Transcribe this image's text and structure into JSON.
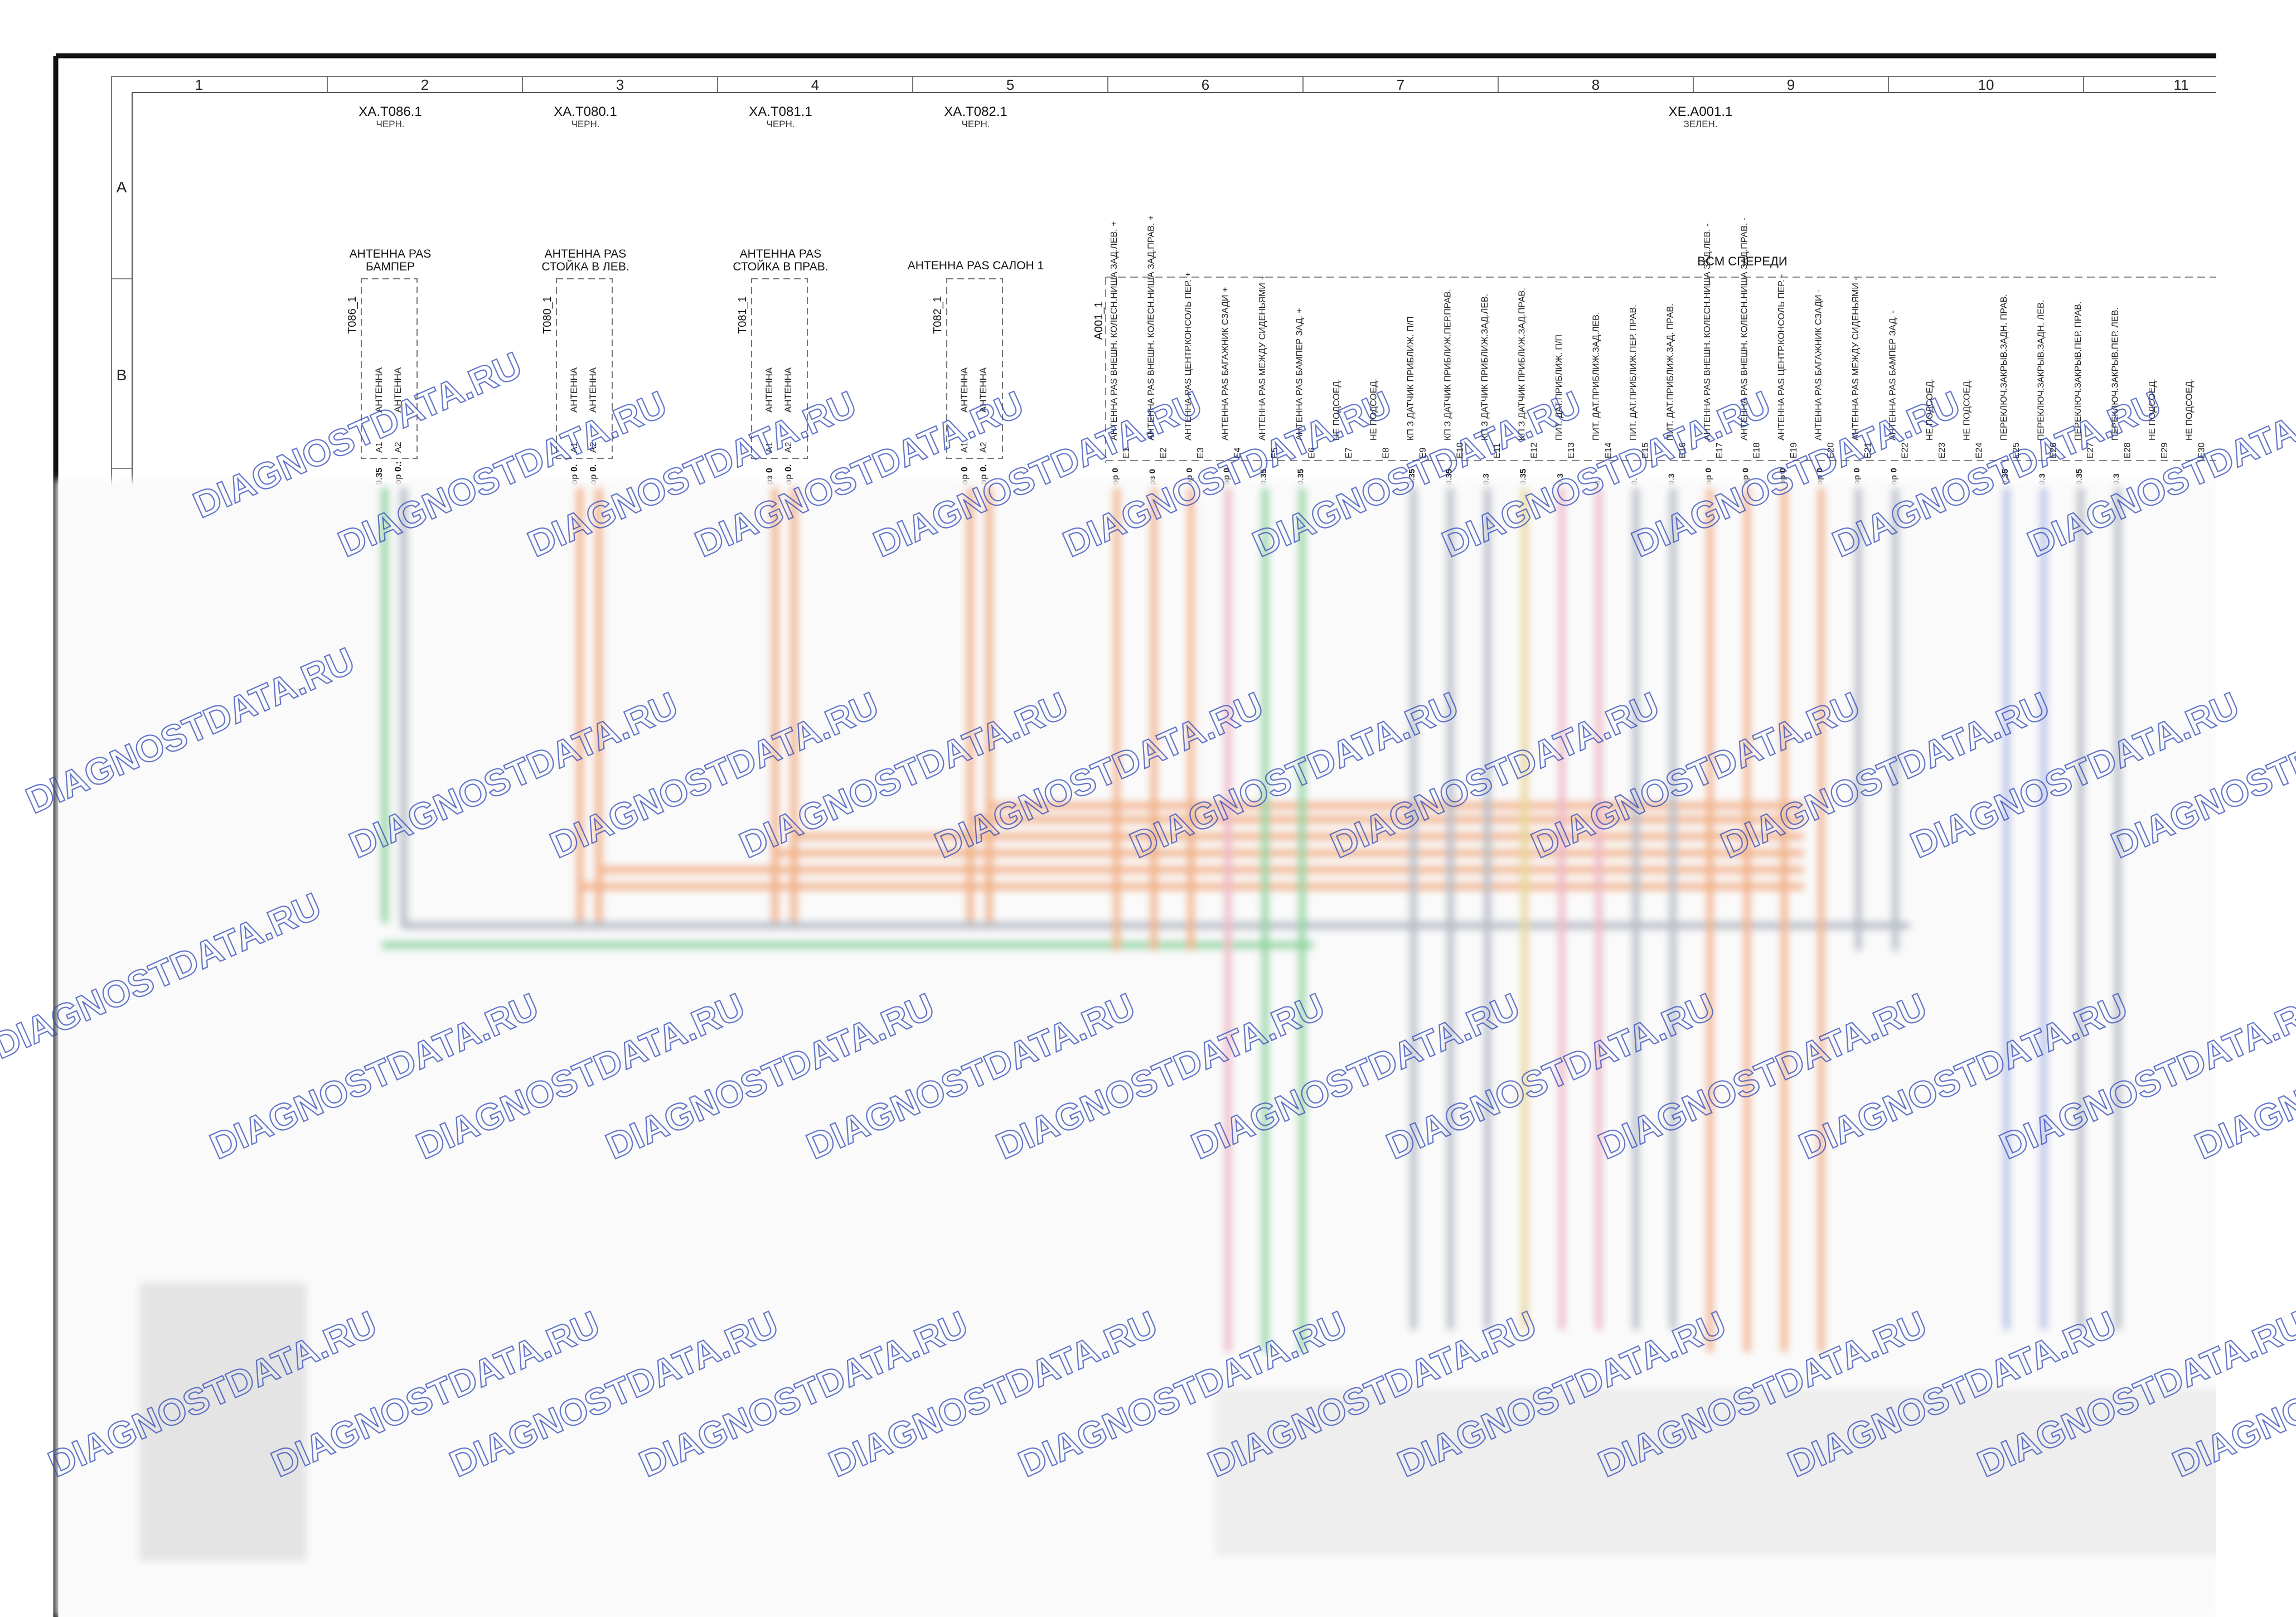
{
  "columns": [
    "1",
    "2",
    "3",
    "4",
    "5",
    "6",
    "7",
    "8",
    "9",
    "10",
    "11"
  ],
  "rows": [
    "A",
    "B"
  ],
  "connectors": [
    {
      "id": "XA.T086.1",
      "color": "ЧЕРН.",
      "label": [
        "АНТЕННА PAS",
        "БАМПЕР"
      ],
      "code": "T086_1",
      "pins": [
        {
          "pin": "A1",
          "name": "АНТЕННА",
          "wire": "0.35"
        },
        {
          "pin": "A2",
          "name": "АНТЕННА",
          "wire": "ор 0.:"
        }
      ]
    },
    {
      "id": "XA.T080.1",
      "color": "ЧЕРН.",
      "label": [
        "АНТЕННА PAS",
        "СТОЙКА В ЛЕВ."
      ],
      "code": "T080_1",
      "pins": [
        {
          "pin": "A1",
          "name": "АНТЕННА",
          "wire": "ор 0."
        },
        {
          "pin": "A2",
          "name": "АНТЕННА",
          "wire": "ор 0."
        }
      ]
    },
    {
      "id": "XA.T081.1",
      "color": "ЧЕРН.",
      "label": [
        "АНТЕННА PAS",
        "СТОЙКА В ПРАВ."
      ],
      "code": "T081_1",
      "pins": [
        {
          "pin": "A1",
          "name": "АНТЕННА",
          "wire": "рз 0"
        },
        {
          "pin": "A2",
          "name": "АНТЕННА",
          "wire": "ор 0."
        }
      ]
    },
    {
      "id": "XA.T082.1",
      "color": "ЧЕРН.",
      "label": [
        "АНТЕННА PAS САЛОН 1"
      ],
      "code": "T082_1",
      "pins": [
        {
          "pin": "A1",
          "name": "АНТЕННА",
          "wire": "ор 0"
        },
        {
          "pin": "A2",
          "name": "АНТЕННА",
          "wire": "ор 0."
        }
      ]
    }
  ],
  "bcm": {
    "id": "XE.A001.1",
    "color": "ЗЕЛЕН.",
    "label": "BCM СПЕРЕДИ",
    "code": "A001_1",
    "pins": [
      {
        "pin": "E1",
        "name": "АНТЕННА PAS ВНЕШН. КОЛЕСН.НИША ЗАД.ЛЕВ. +",
        "wire": "ор 0"
      },
      {
        "pin": "E2",
        "name": "АНТЕННА PAS ВНЕШН. КОЛЕСН.НИША ЗАД.ПРАВ. +",
        "wire": "рз 0"
      },
      {
        "pin": "E3",
        "name": "АНТЕННА PAS ЦЕНТР.КОНСОЛЬ ПЕР. +",
        "wire": "ор 0"
      },
      {
        "pin": "E4",
        "name": "АНТЕННА PAS БАГАЖНИК СЗАДИ +",
        "wire": "ор 0"
      },
      {
        "pin": "E5",
        "name": "АНТЕННА PAS МЕЖДУ СИДЕНЬЯМИ +",
        "wire": "0.35"
      },
      {
        "pin": "E6",
        "name": "АНТЕННА PAS БАМПЕР ЗАД. +",
        "wire": "0.35"
      },
      {
        "pin": "E7",
        "name": "НЕ ПОДСОЕД.",
        "wire": ""
      },
      {
        "pin": "E8",
        "name": "НЕ ПОДСОЕД.",
        "wire": ""
      },
      {
        "pin": "E9",
        "name": "КП З ДАТЧИК ПРИБЛИЖ. П/П",
        "wire": "0.35"
      },
      {
        "pin": "E10",
        "name": "КП З ДАТЧИК ПРИБЛИЖ.ПЕР.ПРАВ.",
        "wire": "0.35"
      },
      {
        "pin": "E11",
        "name": "КП З ДАТЧИК ПРИБЛИЖ.ЗАД.ЛЕВ.",
        "wire": "0.3"
      },
      {
        "pin": "E12",
        "name": "КП З ДАТЧИК ПРИБЛИЖ.ЗАД.ПРАВ.",
        "wire": "0.35"
      },
      {
        "pin": "E13",
        "name": "ПИТ. ДАТ.ПРИБЛИЖ. П/П",
        "wire": "0.3"
      },
      {
        "pin": "E14",
        "name": "ПИТ. ДАТ.ПРИБЛИЖ.ЗАД.ЛЕВ.",
        "wire": "0."
      },
      {
        "pin": "E15",
        "name": "ПИТ. ДАТ.ПРИБЛИЖ.ПЕР. ПРАВ.",
        "wire": "0."
      },
      {
        "pin": "E16",
        "name": "ПИТ. ДАТ.ПРИБЛИЖ.ЗАД. ПРАВ.",
        "wire": "0.3"
      },
      {
        "pin": "E17",
        "name": "АНТЕННА PAS ВНЕШН. КОЛЕСН.НИША ЗАД.ЛЕВ. -",
        "wire": "ор 0"
      },
      {
        "pin": "E18",
        "name": "АНТЕННА PAS ВНЕШН. КОЛЕСН.НИША ЗАД.ПРАВ. -",
        "wire": "ор 0"
      },
      {
        "pin": "E19",
        "name": "АНТЕННА PAS ЦЕНТР.КОНСОЛЬ ПЕР. -",
        "wire": "ор 0"
      },
      {
        "pin": "E20",
        "name": "АНТЕННА PAS БАГАЖНИК СЗАДИ -",
        "wire": "ор 0"
      },
      {
        "pin": "E21",
        "name": "АНТЕННА PAS МЕЖДУ СИДЕНЬЯМИ -",
        "wire": "ор 0"
      },
      {
        "pin": "E22",
        "name": "АНТЕННА PAS БАМПЕР ЗАД. -",
        "wire": "ор 0"
      },
      {
        "pin": "E23",
        "name": "НЕ ПОДСОЕД.",
        "wire": ""
      },
      {
        "pin": "E24",
        "name": "НЕ ПОДСОЕД.",
        "wire": ""
      },
      {
        "pin": "E25",
        "name": "ПЕРЕКЛЮЧ.ЗАКРЫВ.ЗАДН. ПРАВ.",
        "wire": "0.35"
      },
      {
        "pin": "E26",
        "name": "ПЕРЕКЛЮЧ.ЗАКРЫВ.ЗАДН. ЛЕВ.",
        "wire": "0.3"
      },
      {
        "pin": "E27",
        "name": "ПЕРЕКЛЮЧ.ЗАКРЫВ.ПЕР. ПРАВ.",
        "wire": "0.35"
      },
      {
        "pin": "E28",
        "name": "ПЕРЕКЛЮЧ.ЗАКРЫВ.ПЕР. ЛЕВ.",
        "wire": "0.3"
      },
      {
        "pin": "E29",
        "name": "НЕ ПОДСОЕД.",
        "wire": ""
      },
      {
        "pin": "E30",
        "name": "НЕ ПОДСОЕД.",
        "wire": ""
      }
    ]
  },
  "watermark": "DIAGNOSTDATA.RU",
  "colors": {
    "frame": "#111111",
    "orange": "#f2b487",
    "green": "#8fd6a2",
    "grey": "#b7bec8",
    "pink": "#efb9c7",
    "blue": "#b7c3ea",
    "yellow": "#e9d894",
    "watermark": "#2f48b8"
  }
}
